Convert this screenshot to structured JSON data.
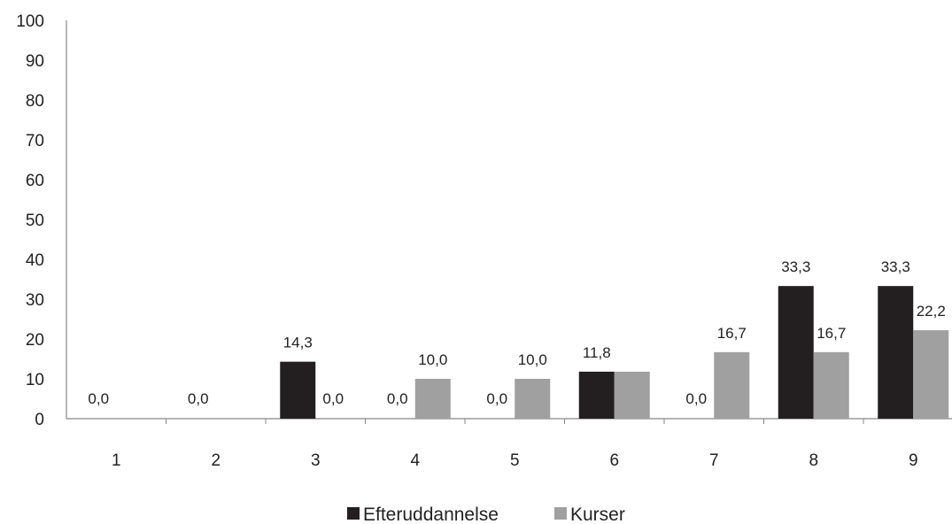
{
  "chart_data": {
    "type": "bar",
    "categories": [
      "1",
      "2",
      "3",
      "4",
      "5",
      "6",
      "7",
      "8",
      "9"
    ],
    "series": [
      {
        "name": "Efteruddannelse",
        "values": [
          0.0,
          0.0,
          14.3,
          0.0,
          0.0,
          11.8,
          0.0,
          33.3,
          33.3
        ],
        "labels": [
          "0,0",
          "0,0",
          "14,3",
          "0,0",
          "0,0",
          "11,8",
          "0,0",
          "33,3",
          "33,3"
        ],
        "color": "#231f20"
      },
      {
        "name": "Kurser",
        "values": [
          null,
          null,
          0.0,
          10.0,
          10.0,
          11.8,
          16.7,
          16.7,
          22.2
        ],
        "labels": [
          "",
          "",
          "0,0",
          "10,0",
          "10,0",
          "",
          "16,7",
          "16,7",
          "22,2"
        ],
        "color": "#a0a0a0"
      }
    ],
    "y_ticks": [
      "0",
      "10",
      "20",
      "30",
      "40",
      "50",
      "60",
      "70",
      "80",
      "90",
      "100"
    ],
    "ylim": [
      0,
      100
    ],
    "title": "",
    "xlabel": "",
    "ylabel": "",
    "grid": false,
    "legend_position": "bottom"
  }
}
